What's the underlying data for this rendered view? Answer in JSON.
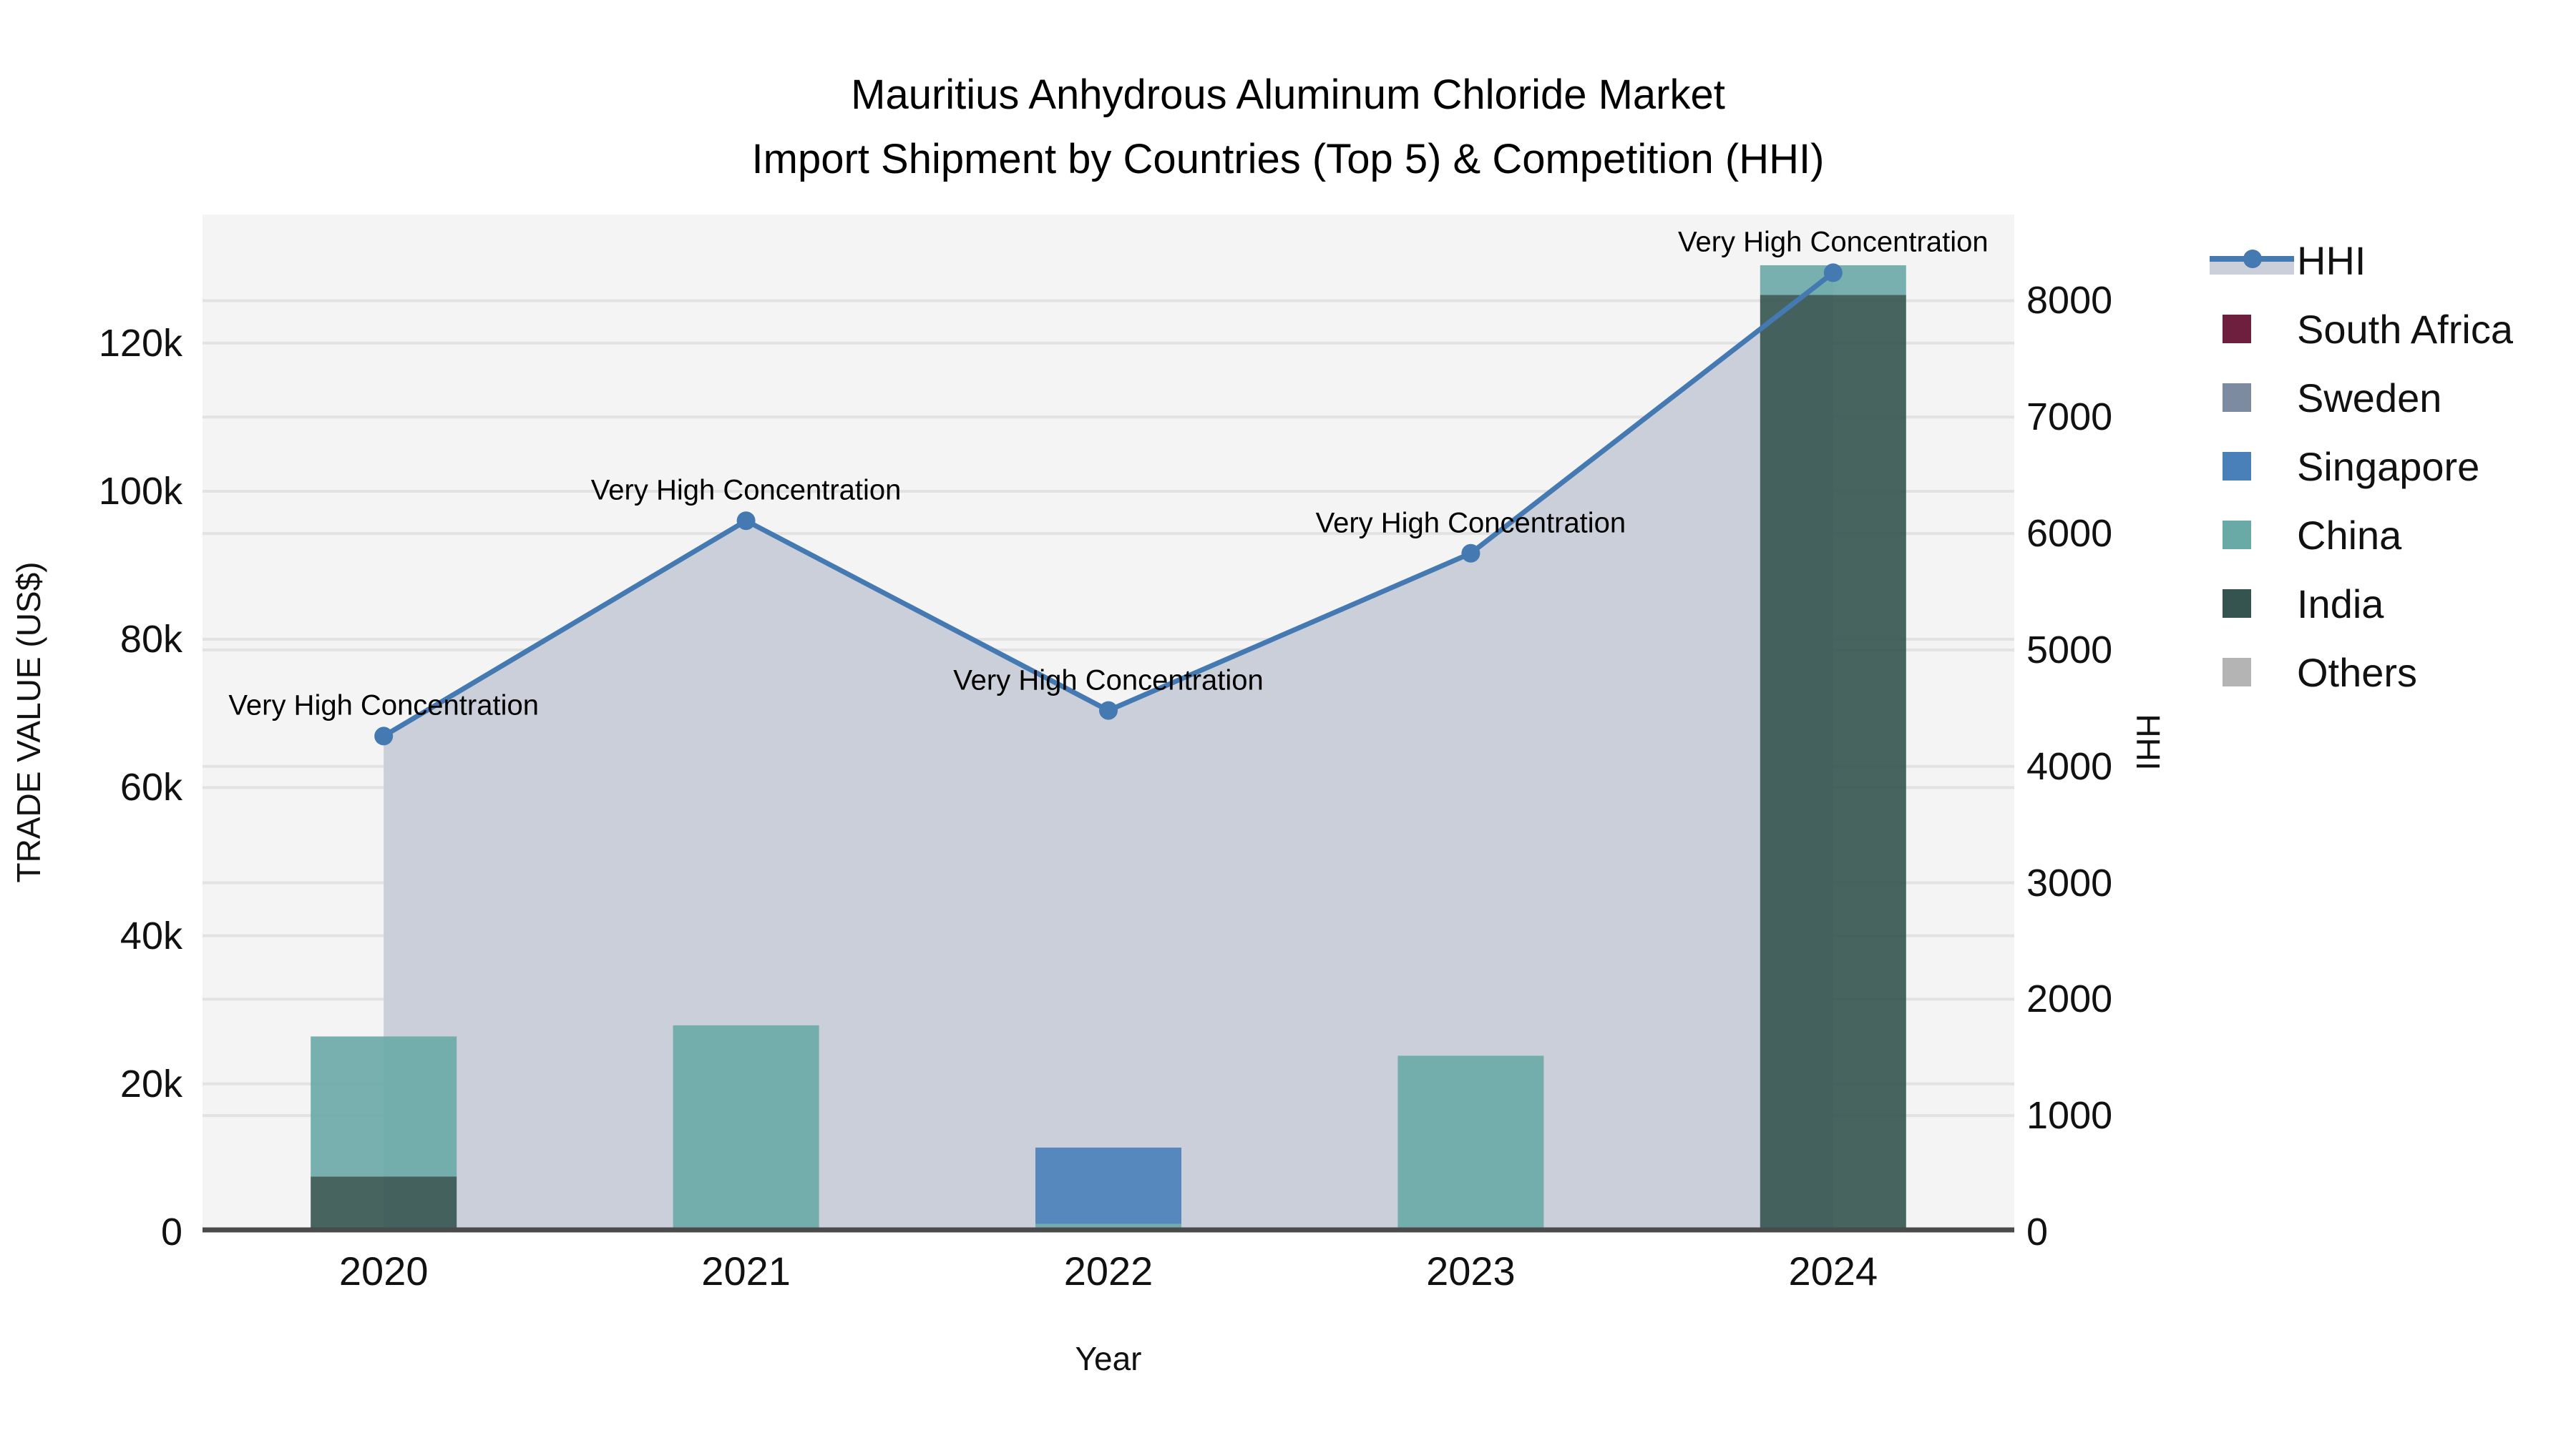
{
  "title": {
    "line1": "Mauritius Anhydrous Aluminum Chloride Market",
    "line2": "Import Shipment by Countries (Top 5) & Competition (HHI)"
  },
  "chart_data": {
    "type": "combo-stacked-bar-line",
    "categories": [
      "2020",
      "2021",
      "2022",
      "2023",
      "2024"
    ],
    "bar_series": [
      {
        "name": "South Africa",
        "color": "#6e1f3e",
        "values": [
          0,
          0,
          0,
          0,
          0
        ]
      },
      {
        "name": "Sweden",
        "color": "#7d8ba0",
        "values": [
          0,
          0,
          0,
          0,
          0
        ]
      },
      {
        "name": "Singapore",
        "color": "#4a80b9",
        "values": [
          0,
          0,
          10300,
          0,
          0
        ]
      },
      {
        "name": "China",
        "color": "#69a9a6",
        "values": [
          18900,
          27900,
          1100,
          23800,
          4000
        ]
      },
      {
        "name": "India",
        "color": "#35544f",
        "values": [
          7500,
          0,
          0,
          0,
          126500
        ]
      },
      {
        "name": "Others",
        "color": "#b4b4b4",
        "values": [
          0,
          0,
          0,
          0,
          0
        ]
      }
    ],
    "stack_order_bottom_to_top": [
      "India",
      "China",
      "Singapore",
      "Sweden",
      "South Africa",
      "Others"
    ],
    "line_series": {
      "name": "HHI",
      "color": "#4479b2",
      "fill_color": "#cacfd9",
      "values": [
        4260,
        6110,
        4480,
        5830,
        8240
      ]
    },
    "annotations": [
      {
        "text": "Very High Concentration"
      },
      {
        "text": "Very High Concentration"
      },
      {
        "text": "Very High Concentration"
      },
      {
        "text": "Very High Concentration"
      },
      {
        "text": "Very High Concentration"
      }
    ],
    "left_axis": {
      "title": "TRADE VALUE (US$)",
      "ticks": [
        "0",
        "20k",
        "40k",
        "60k",
        "80k",
        "100k",
        "120k"
      ],
      "tick_values": [
        0,
        20000,
        40000,
        60000,
        80000,
        100000,
        120000
      ],
      "max": 137350
    },
    "right_axis": {
      "title": "HHI",
      "ticks": [
        "0",
        "1000",
        "2000",
        "3000",
        "4000",
        "5000",
        "6000",
        "7000",
        "8000"
      ],
      "tick_values": [
        0,
        1000,
        2000,
        3000,
        4000,
        5000,
        6000,
        7000,
        8000
      ],
      "max": 8740
    },
    "x_axis": {
      "title": "Year"
    },
    "style": {
      "plot_bg": "#f4f4f4",
      "grid_color": "#e2e2e2",
      "axis_line_color": "#4a4a4a",
      "bar_opacity": 0.9
    }
  },
  "legend_items": [
    {
      "label": "HHI",
      "type": "line"
    },
    {
      "label": "South Africa",
      "type": "square",
      "color": "#6e1f3e"
    },
    {
      "label": "Sweden",
      "type": "square",
      "color": "#7d8ba0"
    },
    {
      "label": "Singapore",
      "type": "square",
      "color": "#4a80b9"
    },
    {
      "label": "China",
      "type": "square",
      "color": "#69a9a6"
    },
    {
      "label": "India",
      "type": "square",
      "color": "#35544f"
    },
    {
      "label": "Others",
      "type": "square",
      "color": "#b4b4b4"
    }
  ]
}
